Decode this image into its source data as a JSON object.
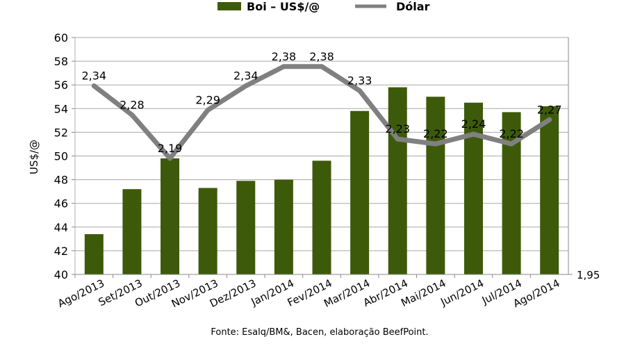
{
  "chart_data": {
    "type": "bar",
    "categories": [
      "Ago/2013",
      "Set/2013",
      "Out/2013",
      "Nov/2013",
      "Dez/2013",
      "Jan/2014",
      "Fev/2014",
      "Mar/2014",
      "Abr/2014",
      "Mai/2014",
      "Jun/2014",
      "Jul/2014",
      "Ago/2014"
    ],
    "series": [
      {
        "name": "Boi – US$/@",
        "type": "bar",
        "axis": "left",
        "color": "#3d5a0a",
        "values": [
          43.4,
          47.2,
          49.8,
          47.3,
          47.9,
          48.0,
          49.6,
          53.8,
          55.8,
          55.0,
          54.5,
          53.7,
          54.2
        ]
      },
      {
        "name": "Dólar",
        "type": "line",
        "axis": "right",
        "color": "#808080",
        "values": [
          2.34,
          2.28,
          2.19,
          2.29,
          2.34,
          2.38,
          2.38,
          2.33,
          2.23,
          2.22,
          2.24,
          2.22,
          2.27
        ],
        "labels": [
          "2,34",
          "2,28",
          "2,19",
          "2,29",
          "2,34",
          "2,38",
          "2,38",
          "2,33",
          "2,23",
          "2,22",
          "2,24",
          "2,22",
          "2,27"
        ]
      }
    ],
    "ylabel": "US$/@",
    "ylim": [
      40,
      60
    ],
    "yticks": [
      "40",
      "42",
      "44",
      "46",
      "48",
      "50",
      "52",
      "54",
      "56",
      "58",
      "60"
    ],
    "y2_tick_label": "1,95",
    "grid": true,
    "legend": "top-center",
    "source": "Fonte: Esalq/BM&, Bacen, elaboração BeefPoint."
  }
}
